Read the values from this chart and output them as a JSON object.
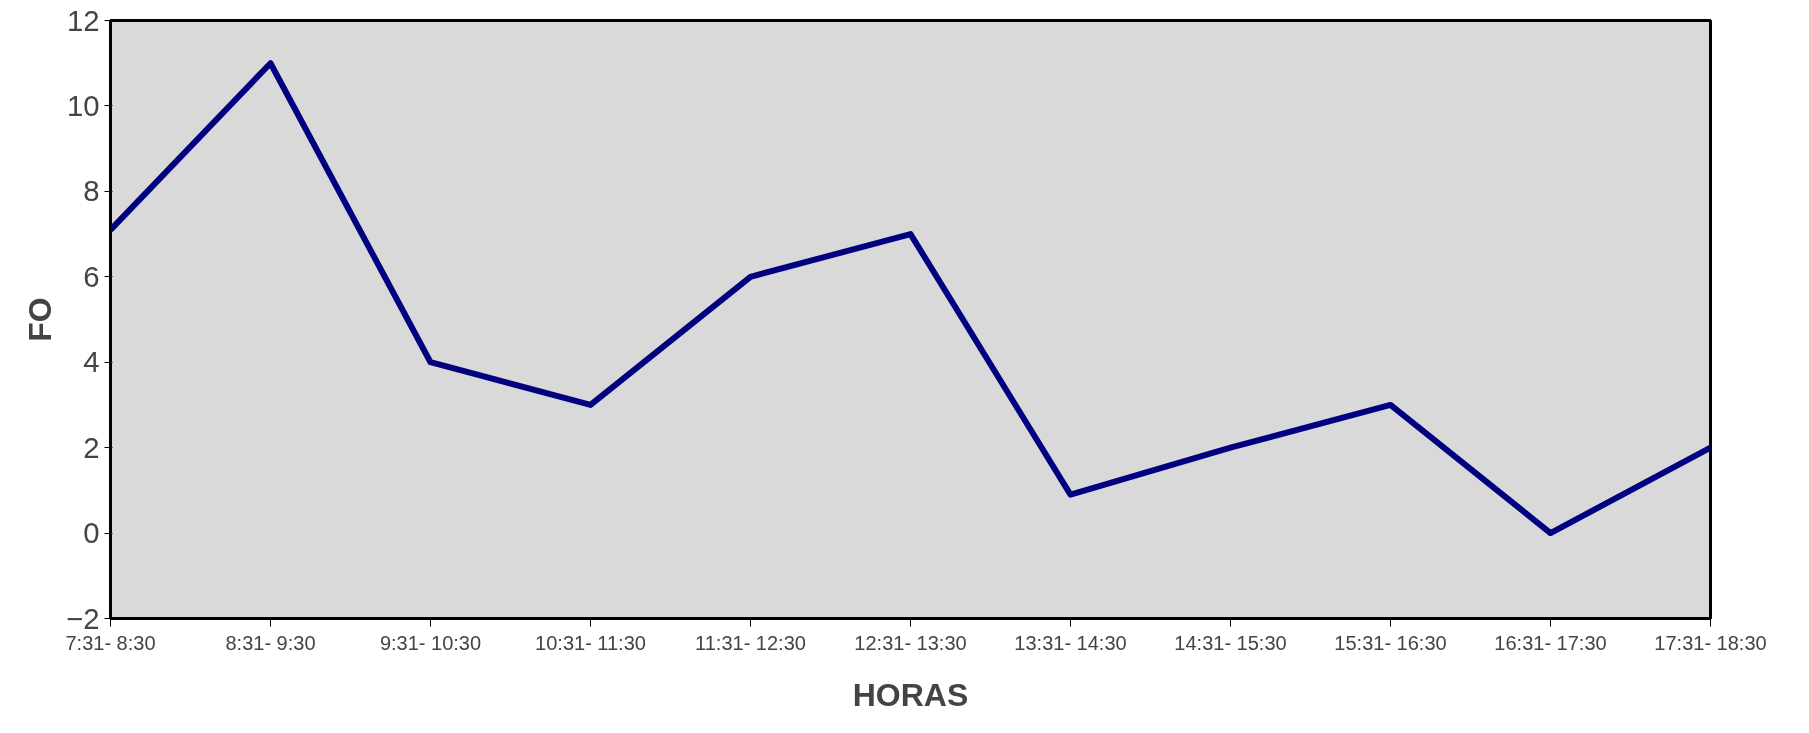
{
  "chart_data": {
    "type": "line",
    "xlabel": "HORAS",
    "ylabel": "FO",
    "categories": [
      "7:31- 8:30",
      "8:31- 9:30",
      "9:31- 10:30",
      "10:31- 11:30",
      "11:31- 12:30",
      "12:31- 13:30",
      "13:31- 14:30",
      "14:31- 15:30",
      "15:31- 16:30",
      "16:31- 17:30",
      "17:31- 18:30"
    ],
    "series": [
      {
        "color": "#000080",
        "values": [
          7.1,
          11.0,
          4.0,
          3.0,
          6.0,
          7.0,
          0.9,
          2.0,
          3.0,
          0.0,
          2.0
        ]
      }
    ],
    "ylim": [
      -2,
      12
    ],
    "yticks": [
      -2,
      0,
      2,
      4,
      6,
      8,
      10,
      12
    ],
    "grid": false,
    "marker": "none",
    "line_style": "solid"
  }
}
